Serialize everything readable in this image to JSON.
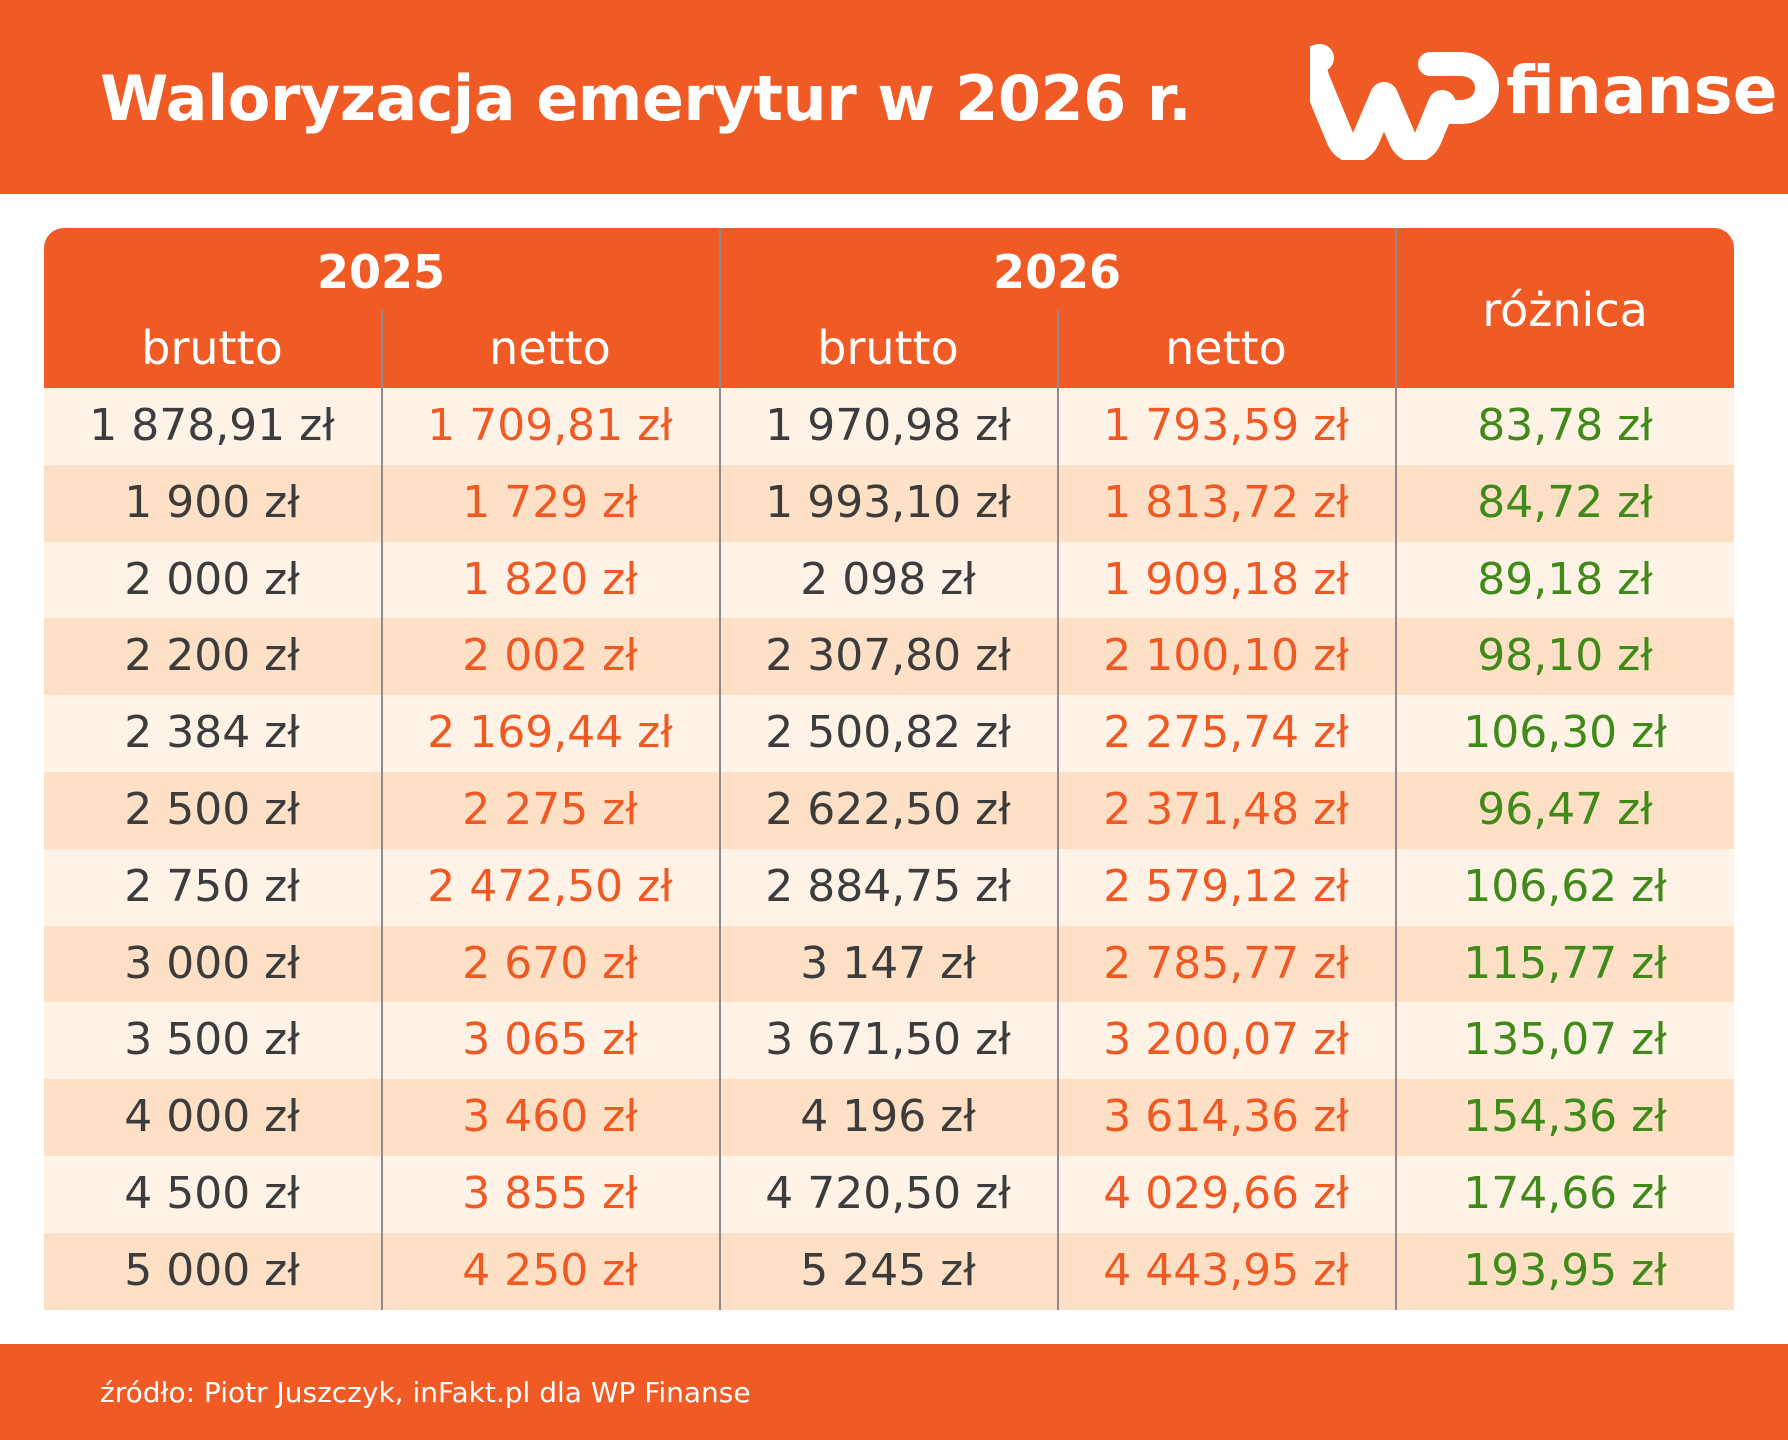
{
  "header": {
    "title": "Waloryzacja emerytur w 2026 r.",
    "logo_brand": "WP",
    "logo_text": "finanse"
  },
  "colors": {
    "accent": "#f05a24",
    "row_light": "#fff2e6",
    "row_dark": "#fde0c6",
    "value_dark": "#3c3c3c",
    "value_orange": "#ef5a24",
    "value_green": "#3f8a18"
  },
  "chart_data": {
    "type": "table",
    "title": "Waloryzacja emerytur w 2026 r.",
    "column_groups": [
      {
        "label": "2025",
        "columns": [
          "brutto",
          "netto"
        ]
      },
      {
        "label": "2026",
        "columns": [
          "brutto",
          "netto"
        ]
      },
      {
        "label": "różnica",
        "columns": []
      }
    ],
    "columns": [
      "2025 brutto",
      "2025 netto",
      "2026 brutto",
      "2026 netto",
      "różnica"
    ],
    "rows": [
      [
        "1 878,91 zł",
        "1 709,81 zł",
        "1 970,98 zł",
        "1 793,59 zł",
        "83,78 zł"
      ],
      [
        "1 900 zł",
        "1 729 zł",
        "1 993,10 zł",
        "1 813,72 zł",
        "84,72 zł"
      ],
      [
        "2 000 zł",
        "1 820 zł",
        "2 098 zł",
        "1 909,18 zł",
        "89,18 zł"
      ],
      [
        "2 200 zł",
        "2 002 zł",
        "2 307,80 zł",
        "2 100,10 zł",
        "98,10 zł"
      ],
      [
        "2 384 zł",
        "2 169,44 zł",
        "2 500,82 zł",
        "2 275,74 zł",
        "106,30 zł"
      ],
      [
        "2 500 zł",
        "2 275 zł",
        "2 622,50 zł",
        "2 371,48 zł",
        "96,47 zł"
      ],
      [
        "2 750 zł",
        "2 472,50 zł",
        "2 884,75 zł",
        "2 579,12 zł",
        "106,62 zł"
      ],
      [
        "3 000 zł",
        "2 670 zł",
        "3 147 zł",
        "2 785,77 zł",
        "115,77 zł"
      ],
      [
        "3 500 zł",
        "3 065 zł",
        "3 671,50 zł",
        "3 200,07 zł",
        "135,07 zł"
      ],
      [
        "4 000 zł",
        "3 460 zł",
        "4 196 zł",
        "3 614,36 zł",
        "154,36 zł"
      ],
      [
        "4 500 zł",
        "3 855 zł",
        "4 720,50 zł",
        "4 029,66 zł",
        "174,66 zł"
      ],
      [
        "5 000 zł",
        "4 250 zł",
        "5 245 zł",
        "4 443,95 zł",
        "193,95 zł"
      ]
    ]
  },
  "footer": {
    "source": "źródło: Piotr Juszczyk, inFakt.pl dla WP Finanse"
  }
}
